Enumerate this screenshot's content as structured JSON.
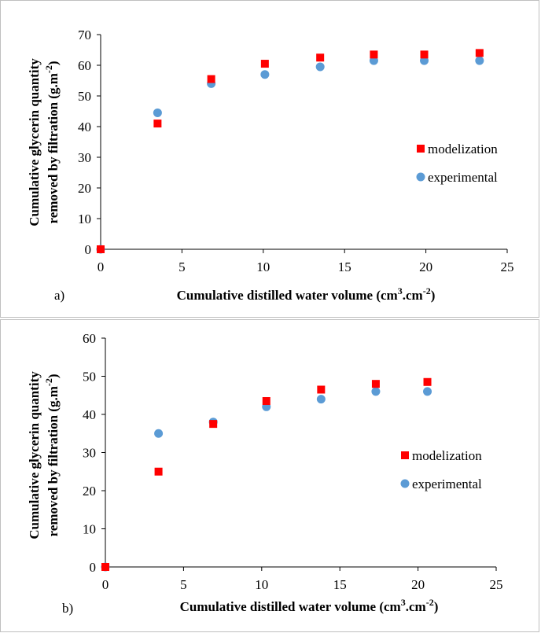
{
  "colors": {
    "modelization": "#ff0000",
    "experimental": "#5b9bd5",
    "axis": "#000000"
  },
  "chart_data": [
    {
      "type": "scatter",
      "panel_label": "a)",
      "xlabel_main": "Cumulative  distilled water volume (cm",
      "xlabel_sup1": "3",
      "xlabel_mid": ".cm",
      "xlabel_sup2": "-2",
      "xlabel_end": ")",
      "ylabel_line1": "Cumulative  glycerin quantity",
      "ylabel_line2_main": "removed by filtration  (g.m",
      "ylabel_line2_sup": "-2",
      "ylabel_line2_end": ")",
      "xlim": [
        0,
        25
      ],
      "ylim": [
        0,
        70
      ],
      "xticks": [
        0,
        5,
        10,
        15,
        20,
        25
      ],
      "yticks": [
        0,
        10,
        20,
        30,
        40,
        50,
        60,
        70
      ],
      "legend_position": "right",
      "series": [
        {
          "name": "modelization",
          "marker": "square",
          "x": [
            0,
            3.5,
            6.8,
            10.1,
            13.5,
            16.8,
            19.9,
            23.3
          ],
          "y": [
            0,
            41,
            55.5,
            60.5,
            62.5,
            63.5,
            63.5,
            64
          ]
        },
        {
          "name": "experimental",
          "marker": "circle",
          "x": [
            0,
            3.5,
            6.8,
            10.1,
            13.5,
            16.8,
            19.9,
            23.3
          ],
          "y": [
            0,
            44.5,
            54,
            57,
            59.5,
            61.5,
            61.5,
            61.5
          ]
        }
      ]
    },
    {
      "type": "scatter",
      "panel_label": "b)",
      "xlabel_main": "Cumulative  distilled water volume (cm",
      "xlabel_sup1": "3",
      "xlabel_mid": ".cm",
      "xlabel_sup2": "-2",
      "xlabel_end": ")",
      "ylabel_line1": "Cumulative  glycerin quantity",
      "ylabel_line2_main": "removed by filtration  (g.m",
      "ylabel_line2_sup": "-2",
      "ylabel_line2_end": ")",
      "xlim": [
        0,
        25
      ],
      "ylim": [
        0,
        60
      ],
      "xticks": [
        0,
        5,
        10,
        15,
        20,
        25
      ],
      "yticks": [
        0,
        10,
        20,
        30,
        40,
        50,
        60
      ],
      "legend_position": "right",
      "series": [
        {
          "name": "modelization",
          "marker": "square",
          "x": [
            0,
            3.4,
            6.9,
            10.3,
            13.8,
            17.3,
            20.6
          ],
          "y": [
            0,
            25,
            37.5,
            43.5,
            46.5,
            48,
            48.5
          ]
        },
        {
          "name": "experimental",
          "marker": "circle",
          "x": [
            0,
            3.4,
            6.9,
            10.3,
            13.8,
            17.3,
            20.6
          ],
          "y": [
            0,
            35,
            38,
            42,
            44,
            46,
            46
          ]
        }
      ]
    }
  ]
}
